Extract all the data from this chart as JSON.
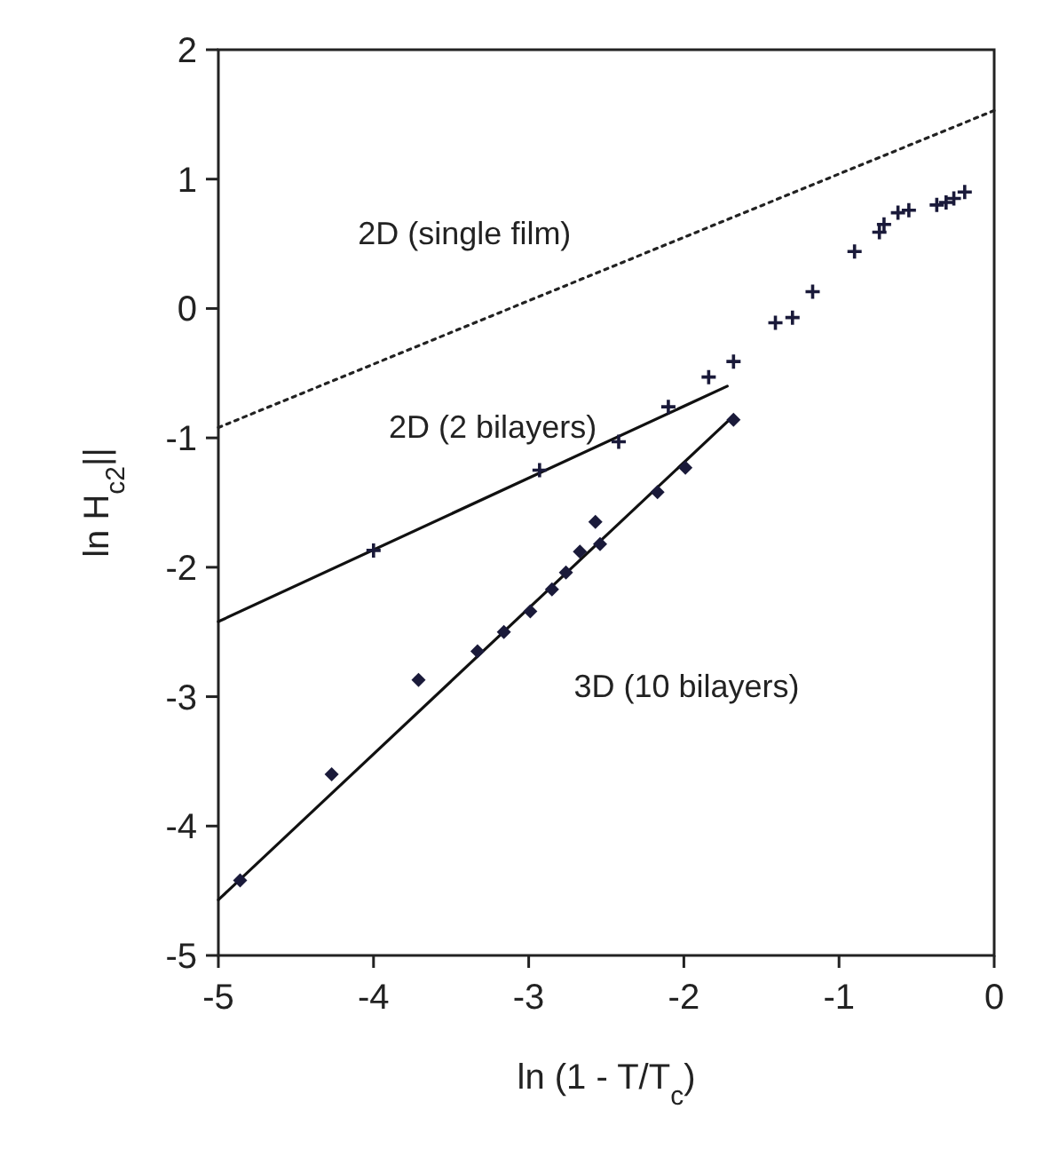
{
  "chart_data": {
    "type": "scatter",
    "xlabel": "ln (1 - T/T$_{c}$)",
    "ylabel": "ln H$_{c2}$||",
    "xlim": [
      -5,
      0
    ],
    "ylim": [
      -5,
      2
    ],
    "xticks": [
      -5,
      -4,
      -3,
      -2,
      -1,
      0
    ],
    "yticks": [
      -5,
      -4,
      -3,
      -2,
      -1,
      0,
      1,
      2
    ],
    "grid": false,
    "series": [
      {
        "name": "2D (single film)",
        "type": "line",
        "line_style": "dotted",
        "marker": "none",
        "color": "#222222",
        "x": [
          -5,
          0
        ],
        "values": [
          -0.92,
          1.53
        ]
      },
      {
        "name": "2D (2 bilayers)",
        "type": "line",
        "line_style": "solid",
        "marker": "none",
        "color": "#111111",
        "x": [
          -5,
          -1.72
        ],
        "values": [
          -2.42,
          -0.6
        ]
      },
      {
        "name": "3D (10 bilayers)",
        "type": "line",
        "line_style": "solid",
        "marker": "none",
        "color": "#111111",
        "x": [
          -5,
          -1.68
        ],
        "values": [
          -4.57,
          -0.83
        ]
      },
      {
        "marker": "cross",
        "color": "#1a1a3a",
        "x": [
          -4,
          -2.93,
          -2.42,
          -2.1,
          -1.84,
          -1.68,
          -1.41,
          -1.3,
          -1.17,
          -0.9,
          -0.74,
          -0.71,
          -0.62,
          -0.55,
          -0.37,
          -0.31,
          -0.26,
          -0.19
        ],
        "values": [
          -1.87,
          -1.25,
          -1.03,
          -0.76,
          -0.53,
          -0.41,
          -0.11,
          -0.07,
          0.13,
          0.44,
          0.59,
          0.65,
          0.74,
          0.76,
          0.8,
          0.82,
          0.85,
          0.9
        ]
      },
      {
        "marker": "diamond",
        "color": "#1a1a3a",
        "x": [
          -4.86,
          -4.27,
          -3.71,
          -3.33,
          -3.16,
          -2.99,
          -2.85,
          -2.76,
          -2.67,
          -2.57,
          -2.54,
          -2.17,
          -1.99,
          -1.68
        ],
        "values": [
          -4.42,
          -3.6,
          -2.87,
          -2.65,
          -2.5,
          -2.34,
          -2.17,
          -2.04,
          -1.88,
          -1.65,
          -1.82,
          -1.42,
          -1.23,
          -0.86
        ]
      }
    ]
  }
}
